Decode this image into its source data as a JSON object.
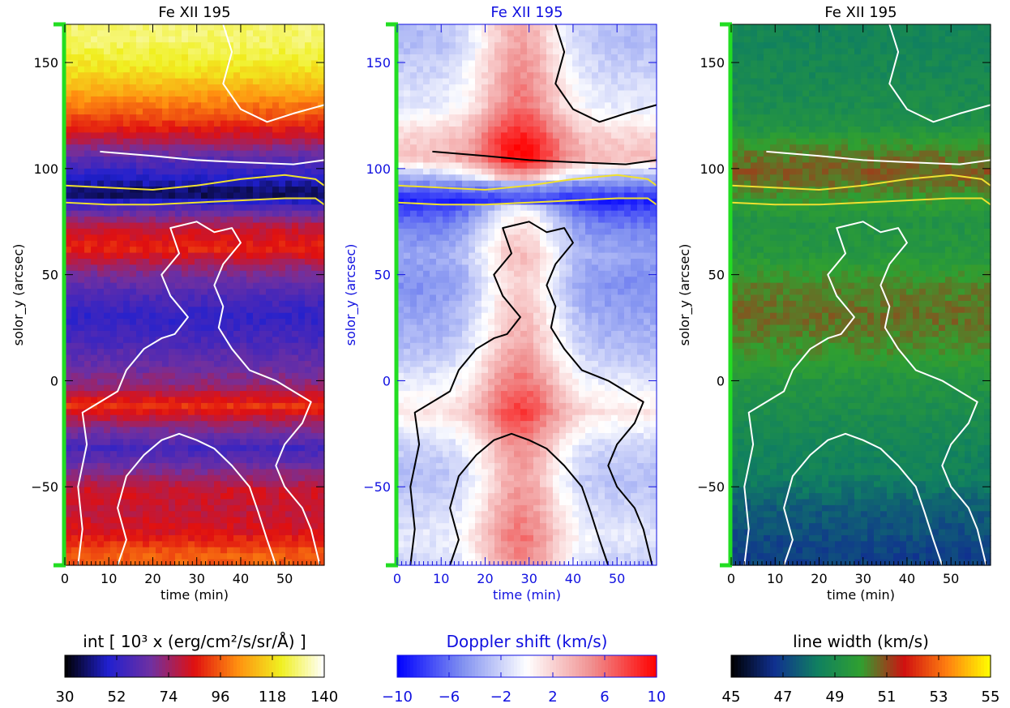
{
  "chart_data": [
    {
      "type": "heatmap",
      "title": "Fe XII 195",
      "xlabel": "time (min)",
      "ylabel": "solor_y (arcsec)",
      "xlim": [
        0,
        59
      ],
      "ylim": [
        -87,
        168
      ],
      "xticks": [
        0,
        10,
        20,
        30,
        40,
        50
      ],
      "yticks": [
        -50,
        0,
        50,
        100,
        150
      ],
      "colorbar": {
        "label": "int [ 10³ x (erg/cm²/s/sr/Å) ]",
        "ticks": [
          30,
          52,
          74,
          96,
          118,
          140
        ],
        "range": [
          30,
          140
        ],
        "colormap": [
          "#000000",
          "#2020d0",
          "#7030a0",
          "#e01010",
          "#ff9010",
          "#f0f020",
          "#ffffff"
        ]
      },
      "contour_color": "#ffffff",
      "band_color": "#f0e030",
      "accent": "#000000",
      "rows": [
        {
          "y": 160,
          "value": 128
        },
        {
          "y": 145,
          "value": 118
        },
        {
          "y": 135,
          "value": 106
        },
        {
          "y": 125,
          "value": 95
        },
        {
          "y": 115,
          "value": 80
        },
        {
          "y": 105,
          "value": 62
        },
        {
          "y": 95,
          "value": 48
        },
        {
          "y": 88,
          "value": 36
        },
        {
          "y": 82,
          "value": 58
        },
        {
          "y": 72,
          "value": 80
        },
        {
          "y": 62,
          "value": 88
        },
        {
          "y": 52,
          "value": 70
        },
        {
          "y": 42,
          "value": 60
        },
        {
          "y": 30,
          "value": 52
        },
        {
          "y": 18,
          "value": 58
        },
        {
          "y": 8,
          "value": 64
        },
        {
          "y": -2,
          "value": 72
        },
        {
          "y": -12,
          "value": 90
        },
        {
          "y": -22,
          "value": 70
        },
        {
          "y": -32,
          "value": 56
        },
        {
          "y": -42,
          "value": 68
        },
        {
          "y": -52,
          "value": 82
        },
        {
          "y": -62,
          "value": 80
        },
        {
          "y": -72,
          "value": 84
        },
        {
          "y": -82,
          "value": 96
        }
      ]
    },
    {
      "type": "heatmap",
      "title": "Fe XII 195",
      "xlabel": "time (min)",
      "ylabel": "solor_y (arcsec)",
      "xlim": [
        0,
        59
      ],
      "ylim": [
        -87,
        168
      ],
      "xticks": [
        0,
        10,
        20,
        30,
        40,
        50
      ],
      "yticks": [
        -50,
        0,
        50,
        100,
        150
      ],
      "colorbar": {
        "label": "Doppler shift (km/s)",
        "ticks": [
          -10,
          -6,
          -2,
          2,
          6,
          10
        ],
        "range": [
          -10,
          10
        ],
        "colormap": [
          "#0000ff",
          "#8090f0",
          "#ffffff",
          "#f09090",
          "#ff0000"
        ]
      },
      "contour_color": "#000000",
      "band_color": "#f0e030",
      "accent": "#1010e0",
      "rows": [
        {
          "y": 160,
          "value": -3
        },
        {
          "y": 145,
          "value": -2
        },
        {
          "y": 130,
          "value": -1
        },
        {
          "y": 115,
          "value": 2
        },
        {
          "y": 105,
          "value": 3
        },
        {
          "y": 95,
          "value": -4
        },
        {
          "y": 85,
          "value": -9
        },
        {
          "y": 75,
          "value": -6
        },
        {
          "y": 60,
          "value": -4
        },
        {
          "y": 45,
          "value": -5
        },
        {
          "y": 30,
          "value": -4
        },
        {
          "y": 15,
          "value": -3
        },
        {
          "y": 0,
          "value": -1
        },
        {
          "y": -15,
          "value": 1
        },
        {
          "y": -30,
          "value": -2
        },
        {
          "y": -45,
          "value": -3
        },
        {
          "y": -60,
          "value": -2
        },
        {
          "y": -75,
          "value": -1
        },
        {
          "y": -85,
          "value": -2
        }
      ],
      "column_center": 28,
      "column_strength": 7
    },
    {
      "type": "heatmap",
      "title": "Fe XII 195",
      "xlabel": "time (min)",
      "ylabel": "solor_y (arcsec)",
      "xlim": [
        0,
        59
      ],
      "ylim": [
        -87,
        168
      ],
      "xticks": [
        0,
        10,
        20,
        30,
        40,
        50
      ],
      "yticks": [
        -50,
        0,
        50,
        100,
        150
      ],
      "colorbar": {
        "label": "line width (km/s)",
        "ticks": [
          45,
          47,
          49,
          51,
          53,
          55
        ],
        "range": [
          45,
          55
        ],
        "colormap": [
          "#000000",
          "#103090",
          "#108060",
          "#30a030",
          "#d01010",
          "#ff8010",
          "#ffff00"
        ]
      },
      "contour_color": "#ffffff",
      "band_color": "#f0e030",
      "accent": "#000000",
      "rows": [
        {
          "y": 160,
          "value": 48.6
        },
        {
          "y": 140,
          "value": 48.8
        },
        {
          "y": 120,
          "value": 49.2
        },
        {
          "y": 108,
          "value": 50.4
        },
        {
          "y": 98,
          "value": 50.8
        },
        {
          "y": 88,
          "value": 50.2
        },
        {
          "y": 75,
          "value": 49.3
        },
        {
          "y": 60,
          "value": 49.5
        },
        {
          "y": 45,
          "value": 50.3
        },
        {
          "y": 30,
          "value": 50.6
        },
        {
          "y": 15,
          "value": 50.2
        },
        {
          "y": 0,
          "value": 49.4
        },
        {
          "y": -15,
          "value": 49.0
        },
        {
          "y": -30,
          "value": 48.6
        },
        {
          "y": -45,
          "value": 48.4
        },
        {
          "y": -60,
          "value": 47.6
        },
        {
          "y": -72,
          "value": 47.3
        },
        {
          "y": -82,
          "value": 47.0
        }
      ]
    }
  ]
}
